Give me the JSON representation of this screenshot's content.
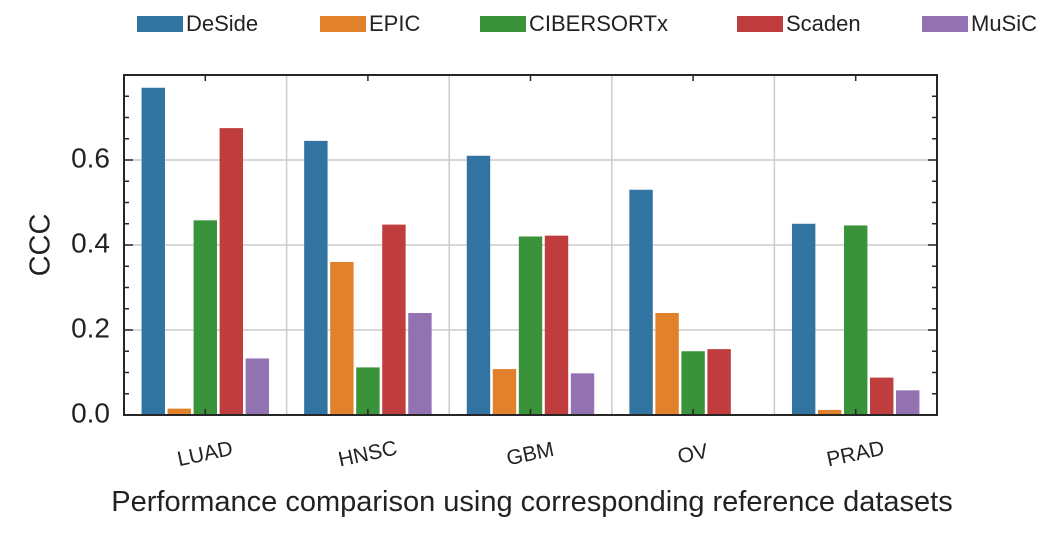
{
  "chart_data": {
    "type": "bar",
    "title": "",
    "xlabel": "Performance comparison using corresponding reference datasets",
    "ylabel": "CCC",
    "categories": [
      "LUAD",
      "HNSC",
      "GBM",
      "OV",
      "PRAD"
    ],
    "series": [
      {
        "name": "DeSide",
        "color": "#3274a1",
        "values": [
          0.77,
          0.645,
          0.61,
          0.53,
          0.45
        ]
      },
      {
        "name": "EPIC",
        "color": "#e1812c",
        "values": [
          0.015,
          0.36,
          0.108,
          0.24,
          0.012
        ]
      },
      {
        "name": "CIBERSORTx",
        "color": "#3a923a",
        "values": [
          0.458,
          0.112,
          0.42,
          0.15,
          0.446
        ]
      },
      {
        "name": "Scaden",
        "color": "#c03d3e",
        "values": [
          0.675,
          0.448,
          0.422,
          0.155,
          0.088
        ]
      },
      {
        "name": "MuSiC",
        "color": "#9372b2",
        "values": [
          0.133,
          0.24,
          0.098,
          0.0,
          0.058
        ]
      }
    ],
    "ylim": [
      0,
      0.8
    ],
    "yticks": [
      0.0,
      0.2,
      0.4,
      0.6
    ],
    "ytick_labels": [
      "0.0",
      "0.2",
      "0.4",
      "0.6"
    ],
    "grid": true,
    "legend_position": "top"
  }
}
